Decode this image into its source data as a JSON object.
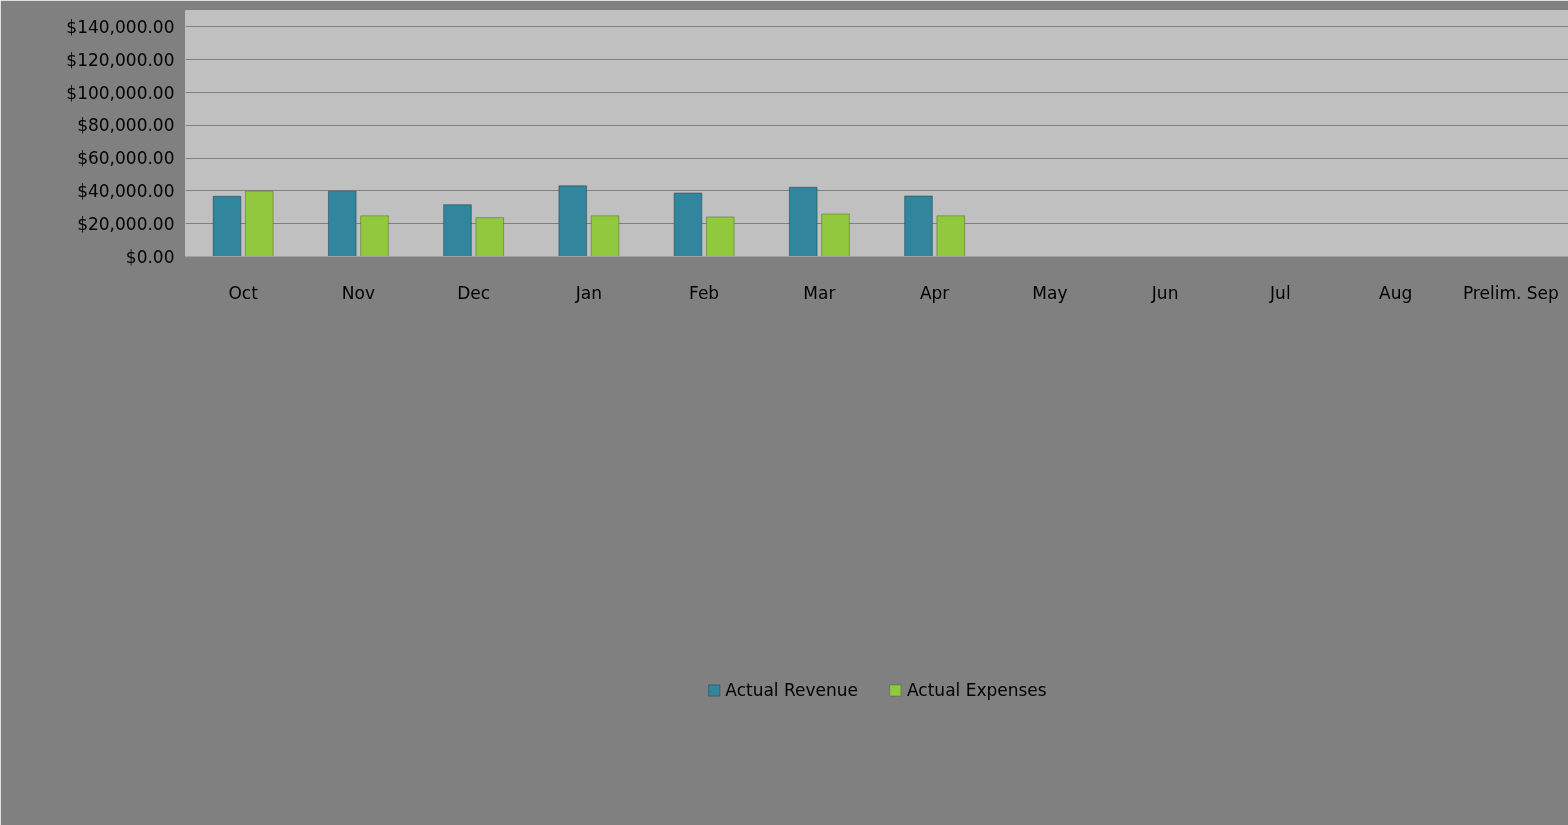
{
  "chart_data": {
    "type": "bar",
    "categories": [
      "Oct",
      "Nov",
      "Dec",
      "Jan",
      "Feb",
      "Mar",
      "Apr",
      "May",
      "Jun",
      "Jul",
      "Aug",
      "Prelim. Sep"
    ],
    "series": [
      {
        "name": "Actual Revenue",
        "color": "#31859c",
        "values": [
          36700,
          39800,
          31600,
          43100,
          38700,
          42200,
          36900,
          null,
          null,
          null,
          null,
          null
        ]
      },
      {
        "name": "Actual Expenses",
        "color": "#92c83e",
        "values": [
          39800,
          24800,
          23700,
          24800,
          24100,
          25900,
          24800,
          null,
          null,
          null,
          null,
          null
        ]
      }
    ],
    "ylim": [
      0,
      150000
    ],
    "yticks": [
      {
        "value": 0,
        "label": "$0.00"
      },
      {
        "value": 20000,
        "label": "$20,000.00"
      },
      {
        "value": 40000,
        "label": "$40,000.00"
      },
      {
        "value": 60000,
        "label": "$60,000.00"
      },
      {
        "value": 80000,
        "label": "$80,000.00"
      },
      {
        "value": 100000,
        "label": "$100,000.00"
      },
      {
        "value": 120000,
        "label": "$120,000.00"
      },
      {
        "value": 140000,
        "label": "$140,000.00"
      }
    ],
    "grid": "y",
    "legend": "bottom"
  }
}
